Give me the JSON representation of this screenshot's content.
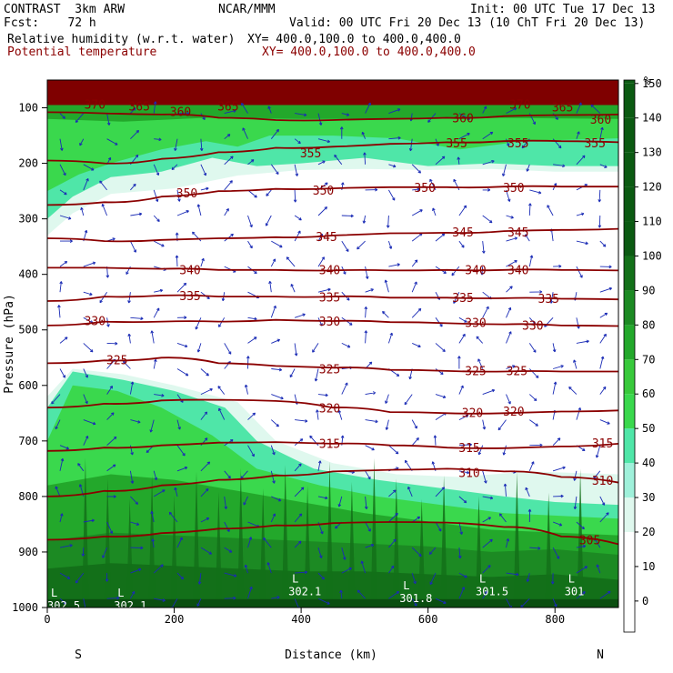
{
  "header": {
    "model": "CONTRAST  3km ARW",
    "center": "NCAR/MMM",
    "init": "Init: 00 UTC Tue 17 Dec 13",
    "fcst": "Fcst:    72 h",
    "valid": "Valid: 00 UTC Fri 20 Dec 13 (10 ChT Fri 20 Dec 13)",
    "field1_name": "Relative humidity (w.r.t. water)",
    "field1_xy": "XY= 400.0,100.0 to 400.0,400.0",
    "field2_name": "Potential temperature",
    "field2_xy": "XY= 400.0,100.0 to 400.0,400.0"
  },
  "colors": {
    "theta_line": "#8b0000",
    "top_fill": "#7f0000",
    "wind_vector": "#1a2bb5",
    "rh_levels": [
      "#ffffff",
      "#dff8ee",
      "#9ff0da",
      "#4fe6a8",
      "#3ad84d",
      "#38c93b",
      "#23a82b",
      "#1c8a23",
      "#137019",
      "#0b5a12"
    ]
  },
  "chart_data": {
    "type": "heatmap",
    "title": "",
    "xlabel": "Distance (km)",
    "ylabel": "Pressure (hPa)",
    "xlim": [
      0,
      900
    ],
    "ylim": [
      1000,
      50
    ],
    "x_ticks": [
      0,
      200,
      400,
      600,
      800
    ],
    "y_ticks": [
      100,
      200,
      300,
      400,
      500,
      600,
      700,
      800,
      900,
      1000
    ],
    "x_end_labels": {
      "left": "S",
      "right": "N"
    },
    "colorbar": {
      "unit": "%",
      "ticks": [
        0,
        10,
        20,
        30,
        40,
        50,
        60,
        70,
        80,
        90,
        100,
        110,
        120,
        130,
        140,
        150
      ]
    },
    "theta_contours": [
      {
        "value": 305,
        "pressure": [
          878,
          872,
          866,
          858,
          852,
          848,
          846,
          847,
          855,
          872,
          886
        ]
      },
      {
        "value": 310,
        "pressure": [
          800,
          790,
          780,
          770,
          762,
          755,
          752,
          750,
          755,
          765,
          775
        ]
      },
      {
        "value": 315,
        "pressure": [
          718,
          712,
          708,
          703,
          702,
          705,
          708,
          712,
          713,
          710,
          705
        ]
      },
      {
        "value": 320,
        "pressure": [
          640,
          633,
          627,
          626,
          628,
          640,
          648,
          650,
          650,
          647,
          645
        ]
      },
      {
        "value": 325,
        "pressure": [
          560,
          555,
          550,
          560,
          565,
          568,
          572,
          574,
          575,
          575,
          575
        ]
      },
      {
        "value": 330,
        "pressure": [
          492,
          485,
          485,
          485,
          482,
          484,
          486,
          488,
          490,
          492,
          493
        ]
      },
      {
        "value": 335,
        "pressure": [
          448,
          440,
          438,
          440,
          440,
          440,
          442,
          442,
          443,
          444,
          445
        ]
      },
      {
        "value": 340,
        "pressure": [
          388,
          388,
          390,
          392,
          392,
          393,
          393,
          392,
          392,
          392,
          393
        ]
      },
      {
        "value": 345,
        "pressure": [
          335,
          340,
          338,
          335,
          333,
          330,
          326,
          325,
          322,
          320,
          318
        ]
      },
      {
        "value": 350,
        "pressure": [
          275,
          270,
          260,
          250,
          246,
          245,
          243,
          243,
          242,
          242,
          242
        ]
      },
      {
        "value": 355,
        "pressure": [
          195,
          200,
          192,
          180,
          172,
          170,
          165,
          162,
          160,
          160,
          162
        ]
      },
      {
        "value": 360,
        "pressure": [
          108,
          110,
          112,
          118,
          122,
          122,
          120,
          118,
          115,
          113,
          112
        ]
      }
    ],
    "theta_labels": [
      {
        "text": "370",
        "x": 75,
        "p": 95
      },
      {
        "text": "365",
        "x": 145,
        "p": 98
      },
      {
        "text": "360",
        "x": 210,
        "p": 108
      },
      {
        "text": "365",
        "x": 285,
        "p": 98
      },
      {
        "text": "360",
        "x": 655,
        "p": 120
      },
      {
        "text": "370",
        "x": 745,
        "p": 95
      },
      {
        "text": "365",
        "x": 812,
        "p": 100
      },
      {
        "text": "360",
        "x": 872,
        "p": 122
      },
      {
        "text": "355",
        "x": 415,
        "p": 183
      },
      {
        "text": "355",
        "x": 645,
        "p": 165
      },
      {
        "text": "355",
        "x": 742,
        "p": 165
      },
      {
        "text": "355",
        "x": 863,
        "p": 165
      },
      {
        "text": "350",
        "x": 220,
        "p": 255
      },
      {
        "text": "350",
        "x": 435,
        "p": 250
      },
      {
        "text": "350",
        "x": 595,
        "p": 245
      },
      {
        "text": "350",
        "x": 735,
        "p": 245
      },
      {
        "text": "345",
        "x": 440,
        "p": 333
      },
      {
        "text": "345",
        "x": 655,
        "p": 325
      },
      {
        "text": "345",
        "x": 742,
        "p": 325
      },
      {
        "text": "340",
        "x": 225,
        "p": 393
      },
      {
        "text": "340",
        "x": 445,
        "p": 393
      },
      {
        "text": "340",
        "x": 675,
        "p": 393
      },
      {
        "text": "340",
        "x": 742,
        "p": 393
      },
      {
        "text": "335",
        "x": 225,
        "p": 440
      },
      {
        "text": "335",
        "x": 445,
        "p": 442
      },
      {
        "text": "335",
        "x": 655,
        "p": 443
      },
      {
        "text": "335",
        "x": 790,
        "p": 445
      },
      {
        "text": "330",
        "x": 75,
        "p": 485
      },
      {
        "text": "330",
        "x": 445,
        "p": 486
      },
      {
        "text": "330",
        "x": 675,
        "p": 488
      },
      {
        "text": "330",
        "x": 765,
        "p": 493
      },
      {
        "text": "325",
        "x": 110,
        "p": 555
      },
      {
        "text": "325",
        "x": 445,
        "p": 572
      },
      {
        "text": "325",
        "x": 675,
        "p": 575
      },
      {
        "text": "325",
        "x": 740,
        "p": 575
      },
      {
        "text": "320",
        "x": 445,
        "p": 642
      },
      {
        "text": "320",
        "x": 670,
        "p": 650
      },
      {
        "text": "320",
        "x": 735,
        "p": 648
      },
      {
        "text": "315",
        "x": 445,
        "p": 706
      },
      {
        "text": "315",
        "x": 665,
        "p": 713
      },
      {
        "text": "315",
        "x": 875,
        "p": 705
      },
      {
        "text": "310",
        "x": 665,
        "p": 758
      },
      {
        "text": "310",
        "x": 875,
        "p": 772
      },
      {
        "text": "305",
        "x": 855,
        "p": 880
      }
    ],
    "minima": [
      {
        "mark": "L",
        "value": "302.5",
        "x": 0,
        "p": 990
      },
      {
        "mark": "L",
        "value": "302.1",
        "x": 105,
        "p": 990
      },
      {
        "mark": "L",
        "value": "302.1",
        "x": 380,
        "p": 965
      },
      {
        "mark": "L",
        "value": "301.8",
        "x": 555,
        "p": 977
      },
      {
        "mark": "L",
        "value": "301.5",
        "x": 675,
        "p": 965
      },
      {
        "mark": "L",
        "value": "301",
        "x": 815,
        "p": 965
      }
    ]
  }
}
